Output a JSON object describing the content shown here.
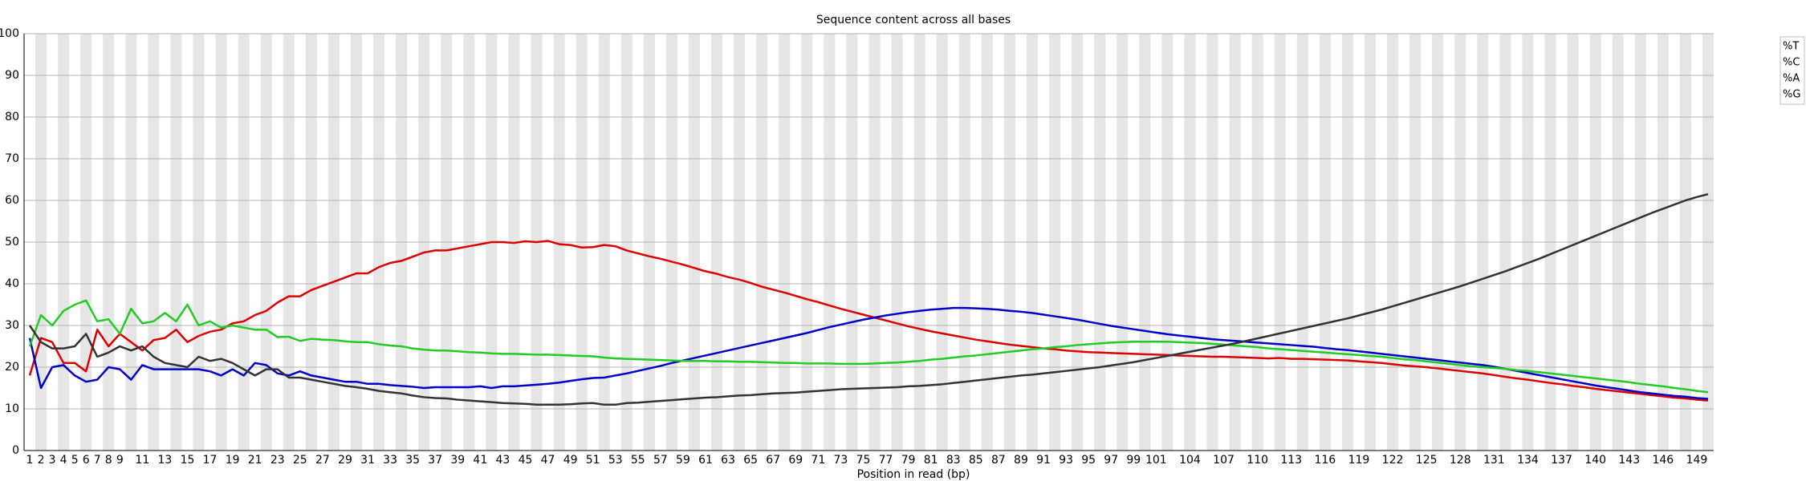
{
  "chart_data": {
    "type": "line",
    "title": "Sequence content across all bases",
    "xlabel": "Position in read (bp)",
    "categories": [
      "1",
      "2",
      "3",
      "4",
      "5",
      "6",
      "7",
      "8",
      "9",
      null,
      "11",
      null,
      "13",
      null,
      "15",
      null,
      "17",
      null,
      "19",
      null,
      "21",
      null,
      "23",
      null,
      "25",
      null,
      "27",
      null,
      "29",
      null,
      "31",
      null,
      "33",
      null,
      "35",
      null,
      "37",
      null,
      "39",
      null,
      "41",
      null,
      "43",
      null,
      "45",
      null,
      "47",
      null,
      "49",
      null,
      "51",
      null,
      "53",
      null,
      "55",
      null,
      "57",
      null,
      "59",
      null,
      "61",
      null,
      "63",
      null,
      "65",
      null,
      "67",
      null,
      "69",
      null,
      "71",
      null,
      "73",
      null,
      "75",
      null,
      "77",
      null,
      "79",
      null,
      "81",
      null,
      "83",
      null,
      "85",
      null,
      "87",
      null,
      "89",
      null,
      "91",
      null,
      "93",
      null,
      "95",
      null,
      "97",
      null,
      "99",
      null,
      "101",
      null,
      null,
      "104",
      null,
      null,
      "107",
      null,
      null,
      "110",
      null,
      null,
      "113",
      null,
      null,
      "116",
      null,
      null,
      "119",
      null,
      null,
      "122",
      null,
      null,
      "125",
      null,
      null,
      "128",
      null,
      null,
      "131",
      null,
      null,
      "134",
      null,
      null,
      "137",
      null,
      null,
      "140",
      null,
      null,
      "143",
      null,
      null,
      "146",
      null,
      null,
      "149",
      null
    ],
    "series": [
      {
        "name": "%T",
        "color": "#dc0000",
        "values": [
          18,
          27,
          26,
          21,
          21,
          19,
          29,
          25,
          28,
          26,
          24,
          26.5,
          27,
          29,
          26,
          27.5,
          28.5,
          29,
          30.5,
          31,
          32.5,
          33.5,
          35.5,
          37,
          37,
          38.5,
          39.5,
          40.5,
          41.5,
          42.5,
          42.5,
          44,
          45,
          45.5,
          46.5,
          47.5,
          48,
          48,
          48.5,
          49,
          49.5,
          50,
          50,
          49.8,
          50.2,
          50,
          50.3,
          49.5,
          49.3,
          48.7,
          48.8,
          49.3,
          49,
          48,
          47.3,
          46.6,
          46,
          45.3,
          44.6,
          43.8,
          43,
          42.4,
          41.6,
          41,
          40.2,
          39.3,
          38.6,
          37.9,
          37.1,
          36.3,
          35.6,
          34.8,
          34,
          33.3,
          32.6,
          31.9,
          31.2,
          30.5,
          29.8,
          29.2,
          28.6,
          28.1,
          27.6,
          27.1,
          26.6,
          26.2,
          25.8,
          25.4,
          25.1,
          24.8,
          24.5,
          24.3,
          24,
          23.8,
          23.6,
          23.5,
          23.4,
          23.3,
          23.2,
          23.1,
          23,
          22.9,
          22.8,
          22.7,
          22.6,
          22.5,
          22.5,
          22.4,
          22.3,
          22.2,
          22.1,
          22.2,
          22,
          22,
          21.9,
          21.8,
          21.7,
          21.6,
          21.4,
          21.2,
          21,
          20.7,
          20.4,
          20.2,
          20,
          19.7,
          19.4,
          19.1,
          18.8,
          18.5,
          18.1,
          17.7,
          17.3,
          17,
          16.6,
          16.2,
          15.9,
          15.5,
          15.2,
          14.8,
          14.5,
          14.2,
          13.9,
          13.6,
          13.3,
          13,
          12.7,
          12.5,
          12.2,
          12
        ]
      },
      {
        "name": "%C",
        "color": "#0000c8",
        "values": [
          27,
          15,
          20,
          20.5,
          18,
          16.5,
          17,
          20,
          19.5,
          17,
          20.5,
          19.5,
          19.5,
          19.5,
          19.5,
          19.5,
          19,
          18,
          19.5,
          18,
          21,
          20.5,
          18.5,
          18,
          19,
          18,
          17.5,
          17,
          16.5,
          16.5,
          16,
          16,
          15.7,
          15.5,
          15.3,
          15,
          15.2,
          15.2,
          15.2,
          15.2,
          15.4,
          15,
          15.4,
          15.4,
          15.6,
          15.8,
          16,
          16.3,
          16.7,
          17.1,
          17.4,
          17.5,
          18,
          18.5,
          19.1,
          19.7,
          20.3,
          21,
          21.6,
          22.2,
          22.8,
          23.4,
          24,
          24.6,
          25.2,
          25.8,
          26.4,
          27,
          27.6,
          28.2,
          28.9,
          29.6,
          30.2,
          30.8,
          31.4,
          31.9,
          32.4,
          32.8,
          33.2,
          33.5,
          33.8,
          34,
          34.2,
          34.2,
          34.1,
          34,
          33.8,
          33.5,
          33.3,
          33,
          32.6,
          32.2,
          31.8,
          31.4,
          30.9,
          30.4,
          29.9,
          29.5,
          29.1,
          28.7,
          28.3,
          27.9,
          27.6,
          27.3,
          27,
          26.7,
          26.5,
          26.3,
          26.1,
          25.9,
          25.7,
          25.5,
          25.3,
          25.1,
          24.9,
          24.6,
          24.3,
          24.1,
          23.8,
          23.5,
          23.2,
          22.9,
          22.6,
          22.3,
          22,
          21.7,
          21.4,
          21.1,
          20.8,
          20.5,
          20.1,
          19.6,
          19.1,
          18.6,
          18.1,
          17.6,
          17.1,
          16.6,
          16.1,
          15.6,
          15.2,
          14.8,
          14.4,
          14,
          13.7,
          13.4,
          13.1,
          12.9,
          12.6,
          12.4
        ]
      },
      {
        "name": "%A",
        "color": "#22cc22",
        "values": [
          25,
          32.5,
          30,
          33.5,
          35,
          36,
          31,
          31.5,
          28,
          34,
          30.5,
          31,
          33,
          31,
          35,
          30,
          31,
          29.5,
          30,
          29.5,
          29,
          29,
          27.2,
          27.3,
          26.3,
          26.8,
          26.6,
          26.5,
          26.2,
          26,
          26,
          25.5,
          25.2,
          25,
          24.5,
          24.2,
          24,
          24,
          23.8,
          23.6,
          23.5,
          23.3,
          23.2,
          23.2,
          23.1,
          23,
          23,
          22.9,
          22.8,
          22.7,
          22.6,
          22.3,
          22.1,
          22,
          21.9,
          21.8,
          21.7,
          21.6,
          21.5,
          21.5,
          21.5,
          21.4,
          21.4,
          21.3,
          21.3,
          21.2,
          21.1,
          21,
          21,
          20.9,
          20.9,
          20.9,
          20.8,
          20.8,
          20.8,
          20.9,
          21,
          21.1,
          21.3,
          21.5,
          21.8,
          22,
          22.3,
          22.6,
          22.8,
          23.1,
          23.4,
          23.7,
          24,
          24.3,
          24.5,
          24.8,
          25,
          25.3,
          25.5,
          25.7,
          25.9,
          26,
          26.1,
          26.1,
          26.1,
          26.1,
          26,
          25.9,
          25.8,
          25.6,
          25.4,
          25.2,
          25,
          24.8,
          24.5,
          24.3,
          24.1,
          23.9,
          23.7,
          23.5,
          23.3,
          23.1,
          22.9,
          22.7,
          22.5,
          22.2,
          21.9,
          21.7,
          21.4,
          21.1,
          20.8,
          20.5,
          20.2,
          20,
          19.8,
          19.6,
          19.3,
          19.1,
          18.8,
          18.5,
          18.2,
          17.9,
          17.6,
          17.3,
          17,
          16.7,
          16.4,
          16,
          15.7,
          15.4,
          15,
          14.7,
          14.3,
          14
        ]
      },
      {
        "name": "%G",
        "color": "#333333",
        "values": [
          30,
          26,
          24.5,
          24.5,
          25,
          28,
          22.5,
          23.5,
          25,
          24,
          25,
          22.5,
          21,
          20.5,
          20,
          22.5,
          21.5,
          22,
          21,
          19.5,
          18,
          19.5,
          19.5,
          17.5,
          17.5,
          17,
          16.5,
          16,
          15.5,
          15.2,
          14.8,
          14.3,
          14,
          13.7,
          13.2,
          12.8,
          12.6,
          12.5,
          12.2,
          12,
          11.8,
          11.6,
          11.4,
          11.3,
          11.2,
          11,
          11,
          11,
          11.1,
          11.3,
          11.4,
          11,
          11,
          11.4,
          11.5,
          11.7,
          11.9,
          12.1,
          12.3,
          12.5,
          12.7,
          12.8,
          13,
          13.2,
          13.3,
          13.5,
          13.7,
          13.8,
          13.9,
          14.1,
          14.3,
          14.5,
          14.7,
          14.8,
          14.9,
          15,
          15.1,
          15.2,
          15.4,
          15.5,
          15.7,
          15.9,
          16.2,
          16.5,
          16.8,
          17.1,
          17.4,
          17.7,
          18,
          18.2,
          18.5,
          18.8,
          19.1,
          19.4,
          19.7,
          20,
          20.4,
          20.8,
          21.2,
          21.7,
          22.2,
          22.7,
          23.2,
          23.7,
          24.2,
          24.7,
          25.2,
          25.7,
          26.3,
          26.9,
          27.5,
          28.1,
          28.7,
          29.3,
          29.9,
          30.5,
          31.1,
          31.7,
          32.4,
          33.1,
          33.8,
          34.6,
          35.4,
          36.2,
          37,
          37.8,
          38.6,
          39.4,
          40.3,
          41.2,
          42.1,
          43,
          44,
          45,
          46,
          47.1,
          48.2,
          49.3,
          50.4,
          51.5,
          52.6,
          53.7,
          54.8,
          55.9,
          57,
          58,
          59,
          60,
          60.8,
          61.5
        ]
      }
    ],
    "ylim": [
      0,
      100
    ],
    "yticks": [
      0,
      10,
      20,
      30,
      40,
      50,
      60,
      70,
      80,
      90,
      100
    ],
    "grid": true,
    "legend": "top-right"
  }
}
